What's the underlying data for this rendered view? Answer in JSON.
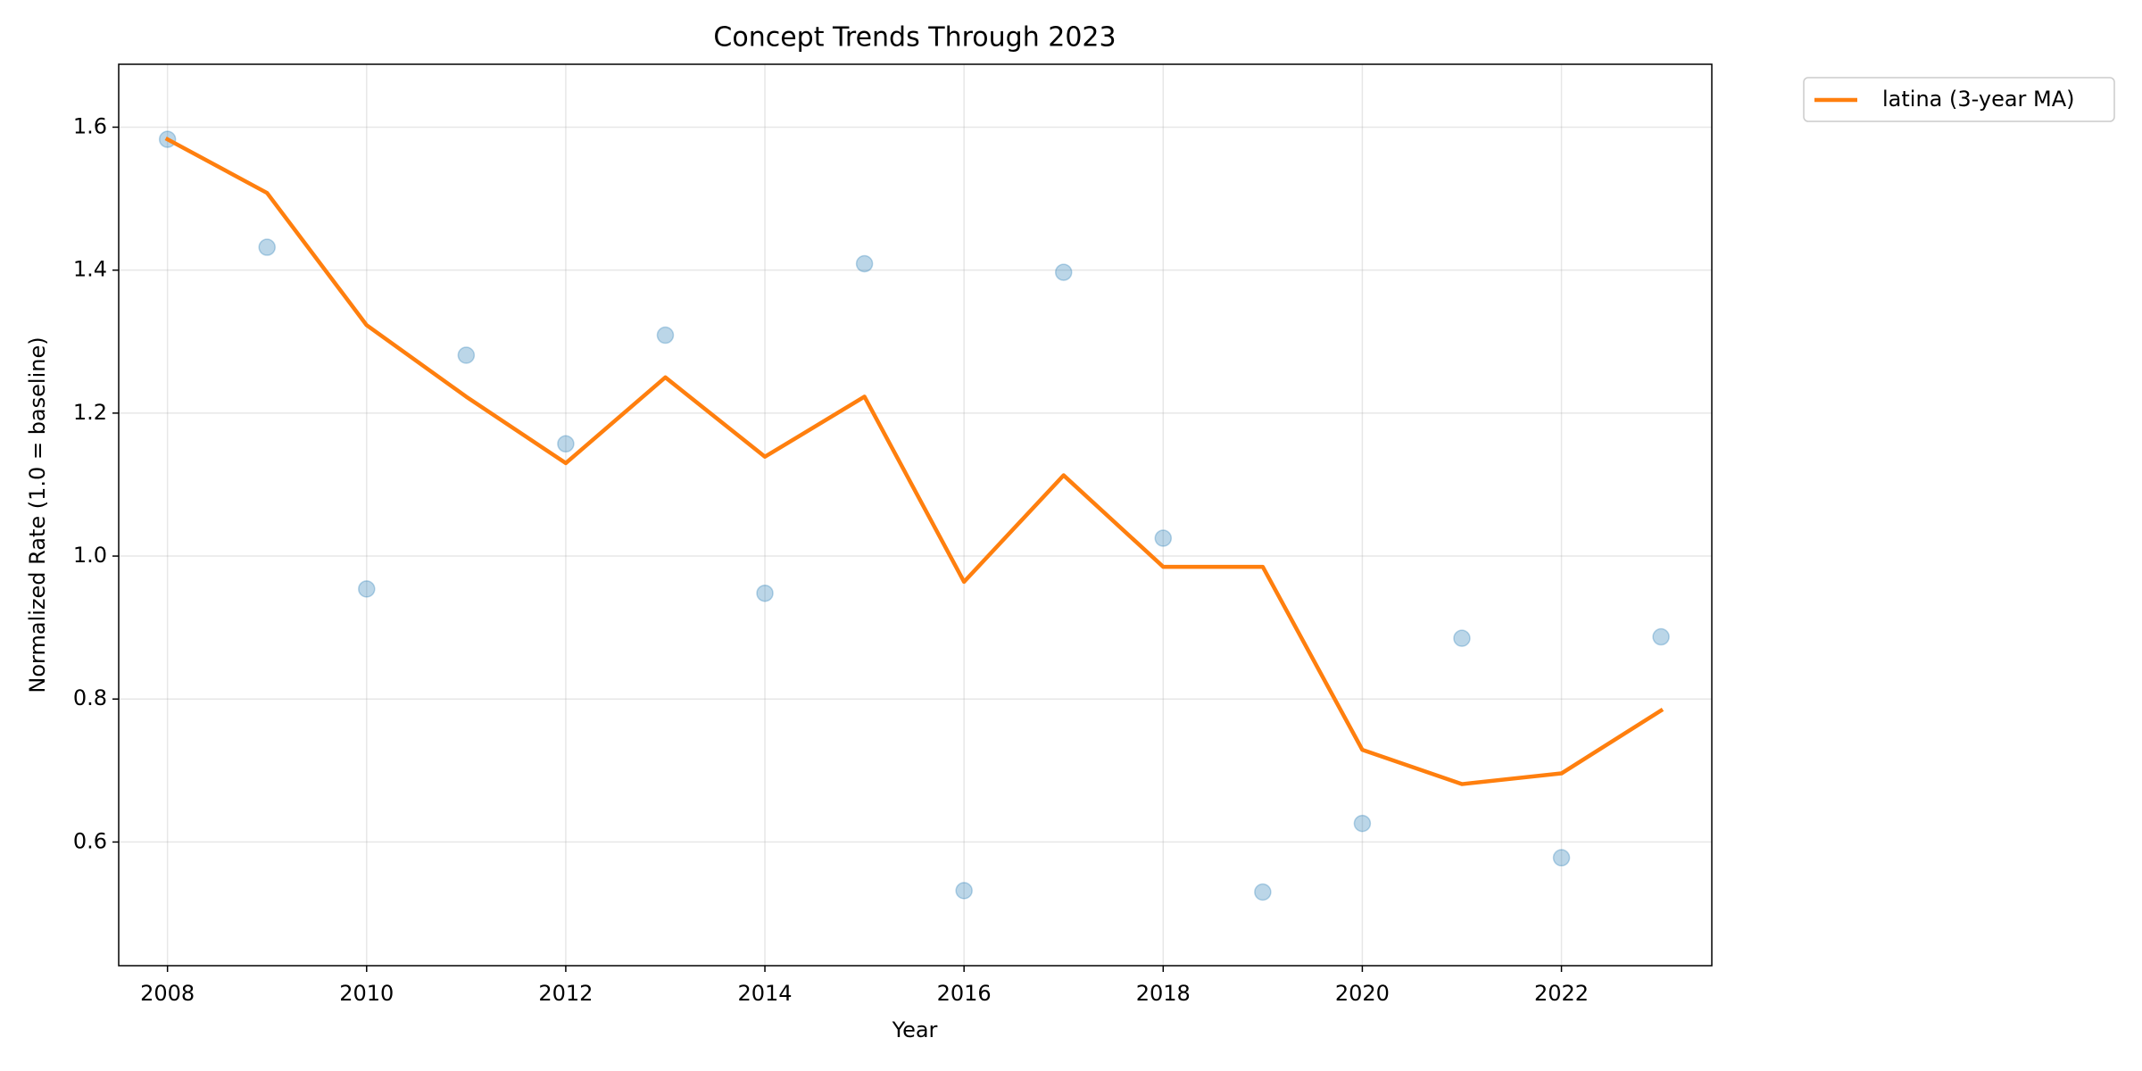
{
  "chart_data": {
    "type": "line",
    "title": "Concept Trends Through 2023",
    "x_label": "Year",
    "y_label": "Normalized Rate (1.0 = baseline)",
    "x": [
      2008,
      2009,
      2010,
      2011,
      2012,
      2013,
      2014,
      2015,
      2016,
      2017,
      2018,
      2019,
      2020,
      2021,
      2022,
      2023
    ],
    "series": [
      {
        "type": "scatter",
        "color": "#1f77b4",
        "values": [
          1.583,
          1.432,
          0.954,
          1.281,
          1.157,
          1.309,
          0.948,
          1.409,
          0.532,
          1.397,
          1.025,
          0.53,
          0.626,
          0.885,
          0.578,
          0.887
        ]
      },
      {
        "type": "line",
        "name": "latina (3-year MA)",
        "color": "#ff7f0e",
        "values": [
          1.583,
          1.508,
          1.323,
          1.223,
          1.13,
          1.25,
          1.139,
          1.223,
          0.964,
          1.113,
          0.985,
          0.985,
          0.729,
          0.681,
          0.696,
          0.784
        ]
      }
    ],
    "xlim": [
      2007.51,
      2023.51
    ],
    "xticks": [
      2008,
      2010,
      2012,
      2014,
      2016,
      2018,
      2020,
      2022
    ],
    "ylim": [
      0.427,
      1.688
    ],
    "yticks": [
      {
        "value": 0.6,
        "label": "0.6"
      },
      {
        "value": 0.8,
        "label": "0.8"
      },
      {
        "value": 1.0,
        "label": "1.0"
      },
      {
        "value": 1.2,
        "label": "1.2"
      },
      {
        "value": 1.4,
        "label": "1.4"
      },
      {
        "value": 1.6,
        "label": "1.6"
      }
    ],
    "grid": true,
    "legend": "outside-upper-right"
  }
}
